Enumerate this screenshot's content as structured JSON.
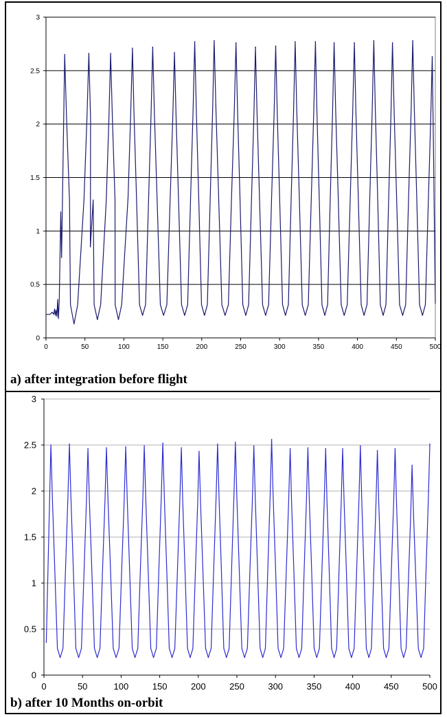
{
  "figure": {
    "panels": [
      {
        "caption": "a) after integration before flight"
      },
      {
        "caption": "b) after 10 Months on-orbit"
      }
    ]
  },
  "chart_data": [
    {
      "type": "line",
      "title": "",
      "caption": "a) after integration before flight",
      "xlabel": "",
      "ylabel": "",
      "xlim": [
        0,
        500
      ],
      "ylim": [
        0,
        3
      ],
      "xticks": [
        "0",
        "50",
        "100",
        "150",
        "200",
        "250",
        "300",
        "350",
        "400",
        "450",
        "500"
      ],
      "yticks": [
        "0",
        "0.5",
        "1",
        "1.5",
        "2",
        "2.5",
        "3"
      ],
      "grid": "horizontal",
      "plot_background": "#ffffff",
      "line_color": "#1a1a6e",
      "series": [
        {
          "baseline": 0.21,
          "start": {
            "x": [
              0,
              5,
              8,
              10,
              11,
              12,
              13,
              14,
              15,
              16,
              17
            ],
            "y": [
              0.22,
              0.22,
              0.24,
              0.22,
              0.27,
              0.21,
              0.26,
              0.2,
              0.36,
              0.18,
              0.35
            ]
          },
          "peaks": [
            {
              "x": 24,
              "y": 2.65
            },
            {
              "x": 55,
              "y": 2.66
            },
            {
              "x": 83,
              "y": 2.66
            },
            {
              "x": 111,
              "y": 2.71
            },
            {
              "x": 137,
              "y": 2.72
            },
            {
              "x": 165,
              "y": 2.67
            },
            {
              "x": 191,
              "y": 2.77
            },
            {
              "x": 216,
              "y": 2.78
            },
            {
              "x": 244,
              "y": 2.76
            },
            {
              "x": 269,
              "y": 2.72
            },
            {
              "x": 295,
              "y": 2.73
            },
            {
              "x": 320,
              "y": 2.77
            },
            {
              "x": 346,
              "y": 2.77
            },
            {
              "x": 370,
              "y": 2.76
            },
            {
              "x": 396,
              "y": 2.76
            },
            {
              "x": 421,
              "y": 2.78
            },
            {
              "x": 445,
              "y": 2.76
            },
            {
              "x": 471,
              "y": 2.78
            },
            {
              "x": 496,
              "y": 2.63
            }
          ],
          "troughs": [
            {
              "x": 36,
              "y": 0.13
            },
            {
              "x": 66,
              "y": 0.17
            },
            {
              "x": 93,
              "y": 0.17
            }
          ],
          "end": {
            "x": 500,
            "y": 0.32
          },
          "spikes": [
            {
              "x": 19,
              "y": 1.18
            },
            {
              "x": 20,
              "y": 0.75
            },
            {
              "x": 57,
              "y": 0.85
            }
          ]
        }
      ]
    },
    {
      "type": "line",
      "title": "",
      "caption": "b) after 10 Months on-orbit",
      "xlabel": "",
      "ylabel": "",
      "xlim": [
        0,
        500
      ],
      "ylim": [
        0,
        3
      ],
      "xticks": [
        "0",
        "50",
        "100",
        "150",
        "200",
        "250",
        "300",
        "350",
        "400",
        "450",
        "500"
      ],
      "yticks": [
        "0",
        "0.5",
        "1",
        "1.5",
        "2",
        "2.5",
        "3"
      ],
      "grid": "horizontal",
      "plot_background": "#ffffff",
      "line_color": "#2b2bd0",
      "series": [
        {
          "baseline": 0.19,
          "start": {
            "x": [
              3
            ],
            "y": [
              0.35
            ]
          },
          "peaks": [
            {
              "x": 9,
              "y": 2.5
            },
            {
              "x": 33,
              "y": 2.51
            },
            {
              "x": 57,
              "y": 2.46
            },
            {
              "x": 81,
              "y": 2.47
            },
            {
              "x": 106,
              "y": 2.48
            },
            {
              "x": 130,
              "y": 2.49
            },
            {
              "x": 154,
              "y": 2.52
            },
            {
              "x": 178,
              "y": 2.47
            },
            {
              "x": 201,
              "y": 2.43
            },
            {
              "x": 225,
              "y": 2.51
            },
            {
              "x": 248,
              "y": 2.53
            },
            {
              "x": 272,
              "y": 2.49
            },
            {
              "x": 295,
              "y": 2.56
            },
            {
              "x": 319,
              "y": 2.46
            },
            {
              "x": 342,
              "y": 2.47
            },
            {
              "x": 365,
              "y": 2.46
            },
            {
              "x": 387,
              "y": 2.46
            },
            {
              "x": 410,
              "y": 2.49
            },
            {
              "x": 432,
              "y": 2.44
            },
            {
              "x": 455,
              "y": 2.46
            },
            {
              "x": 477,
              "y": 2.28
            },
            {
              "x": 500,
              "y": 2.51
            }
          ],
          "troughs": [],
          "end": {
            "x": 500,
            "y": 2.51
          },
          "spikes": []
        }
      ]
    }
  ]
}
